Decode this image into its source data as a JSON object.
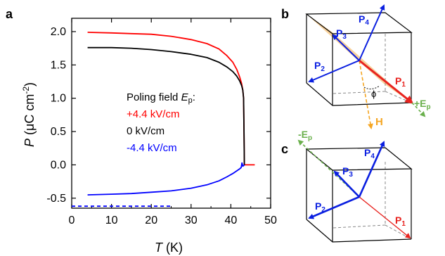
{
  "panels": {
    "a": {
      "label": "a",
      "legend": {
        "title_prefix": "Poling field ",
        "title_var": "E",
        "title_sub": "p",
        "title_suffix": ":",
        "entries": [
          {
            "text": "+4.4 kV/cm",
            "color": "#ff0000"
          },
          {
            "text": "0 kV/cm",
            "color": "#000000"
          },
          {
            "text": "-4.4 kV/cm",
            "color": "#0000ff"
          }
        ]
      }
    },
    "b": {
      "label": "b",
      "vectors": {
        "p1": "P",
        "p1_sub": "1",
        "p2": "P",
        "p2_sub": "2",
        "p3": "P",
        "p3_sub": "3",
        "p4": "P",
        "p4_sub": "4"
      },
      "angle": "ϕ",
      "h_label": "H",
      "field_sign": "+E",
      "field_sub": "p"
    },
    "c": {
      "label": "c",
      "vectors": {
        "p1": "P",
        "p1_sub": "1",
        "p2": "P",
        "p2_sub": "2",
        "p3": "P",
        "p3_sub": "3",
        "p4": "P",
        "p4_sub": "4"
      },
      "field_sign": "-E",
      "field_sub": "p"
    }
  },
  "colors": {
    "red": "#e8231f",
    "black": "#000000",
    "blue": "#0a1fe0",
    "orange": "#f5a623",
    "plane": "#f7c98a",
    "green": "#6ab04c"
  },
  "chart_data": {
    "type": "line",
    "xlabel": "T (K)",
    "ylabel": "P (μC cm^-2)",
    "xlim": [
      0,
      50
    ],
    "ylim": [
      -0.65,
      2.2
    ],
    "xticks": [
      0,
      10,
      20,
      30,
      40,
      50
    ],
    "yticks": [
      -0.5,
      0.0,
      0.5,
      1.0,
      1.5,
      2.0
    ],
    "series": [
      {
        "name": "+4.4 kV/cm",
        "color": "#ff0000",
        "x": [
          4,
          10,
          15,
          20,
          25,
          30,
          34,
          37,
          39,
          40.5,
          41.5,
          42.2,
          42.7,
          43.0,
          43.2,
          43.3,
          43.4,
          44,
          46
        ],
        "y": [
          1.99,
          1.98,
          1.97,
          1.96,
          1.93,
          1.88,
          1.82,
          1.74,
          1.64,
          1.54,
          1.43,
          1.32,
          1.22,
          1.12,
          1.0,
          0.5,
          0.0,
          0.0,
          0.0
        ]
      },
      {
        "name": "0 kV/cm",
        "color": "#000000",
        "x": [
          4,
          10,
          15,
          20,
          25,
          30,
          34,
          37,
          39,
          40.5,
          41.5,
          42.2,
          42.7,
          43.0,
          43.2,
          43.3,
          43.4
        ],
        "y": [
          1.76,
          1.76,
          1.75,
          1.73,
          1.7,
          1.66,
          1.61,
          1.54,
          1.47,
          1.4,
          1.33,
          1.26,
          1.19,
          1.12,
          1.0,
          0.5,
          0.0
        ]
      },
      {
        "name": "-4.4 kV/cm",
        "color": "#0000ff",
        "x": [
          4,
          10,
          15,
          20,
          25,
          30,
          34,
          37,
          39,
          40.5,
          41.5,
          42.2,
          42.6,
          42.8,
          43.0,
          43.2,
          43.4
        ],
        "y": [
          -0.45,
          -0.44,
          -0.43,
          -0.41,
          -0.39,
          -0.35,
          -0.3,
          -0.24,
          -0.18,
          -0.13,
          -0.09,
          -0.06,
          -0.04,
          0.03,
          -0.02,
          -0.01,
          0.0
        ]
      },
      {
        "name": "",
        "color": "#0000ff",
        "dashed": true,
        "x": [
          0,
          25
        ],
        "y": [
          -0.62,
          -0.62
        ]
      }
    ]
  }
}
